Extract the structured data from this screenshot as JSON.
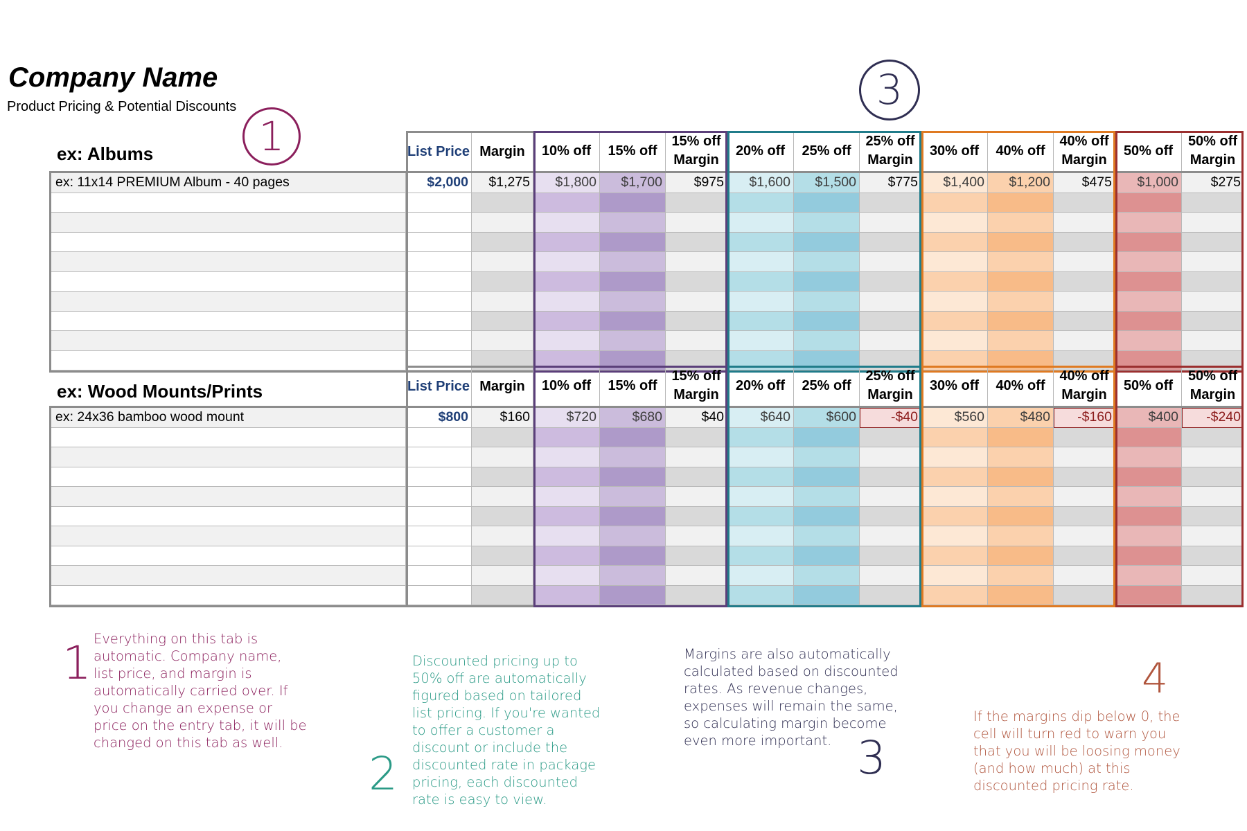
{
  "page": {
    "company_name": "Company Name",
    "subtitle": "Product Pricing & Potential Discounts"
  },
  "callouts": [
    "1",
    "2",
    "3",
    "4"
  ],
  "columns": [
    {
      "key": "list",
      "label": "List Price",
      "color": "#1f3f77"
    },
    {
      "key": "margin",
      "label": "Margin"
    },
    {
      "key": "d10",
      "label": "10% off"
    },
    {
      "key": "d15",
      "label": "15% off"
    },
    {
      "key": "m15",
      "label": "15% off Margin"
    },
    {
      "key": "d20",
      "label": "20% off"
    },
    {
      "key": "d25",
      "label": "25% off"
    },
    {
      "key": "m25",
      "label": "25% off Margin"
    },
    {
      "key": "d30",
      "label": "30% off"
    },
    {
      "key": "d40",
      "label": "40% off"
    },
    {
      "key": "m40",
      "label": "40% off Margin"
    },
    {
      "key": "d50",
      "label": "50% off"
    },
    {
      "key": "m50",
      "label": "50% off Margin"
    }
  ],
  "sections": [
    {
      "title": "ex: Albums",
      "example": {
        "name": "ex: 11x14 PREMIUM Album - 40 pages",
        "values": [
          "$2,000",
          "$1,275",
          "$1,800",
          "$1,700",
          "$975",
          "$1,600",
          "$1,500",
          "$775",
          "$1,400",
          "$1,200",
          "$475",
          "$1,000",
          "$275"
        ]
      }
    },
    {
      "title": "ex: Wood Mounts/Prints",
      "example": {
        "name": "ex: 24x36 bamboo wood mount",
        "values": [
          "$800",
          "$160",
          "$720",
          "$680",
          "$40",
          "$640",
          "$600",
          "-$40",
          "$560",
          "$480",
          "-$160",
          "$400",
          "-$240"
        ]
      }
    }
  ],
  "colors": {
    "purple": "#5b3f7a",
    "teal": "#207c8a",
    "orange": "#df7a22",
    "red": "#9b2f2f",
    "negative_text": "#8b1a1a",
    "negative_fill": "#f6dcdc",
    "note1": "#8b1f5c",
    "note2": "#2a9a86",
    "note3": "#2f2e52",
    "note4": "#b0553d"
  },
  "notes": [
    {
      "num": "1",
      "lines": [
        "Everything on this tab is",
        "automatic. Company name,",
        "list price, and margin is",
        "automatically carried over. If",
        "you change an expense or",
        "price on the entry tab, it will be",
        "changed on this tab as well."
      ]
    },
    {
      "num": "2",
      "lines": [
        "Discounted pricing up to",
        "50% off are automatically",
        "figured based on tailored",
        "list pricing. If you're wanted",
        "to offer a customer a",
        "discount or include the",
        "discounted rate in package",
        "pricing,  each discounted",
        "rate is easy to view."
      ]
    },
    {
      "num": "3",
      "lines": [
        "Margins are also automatically",
        "calculated based on discounted",
        "rates. As revenue changes,",
        "expenses will remain the same,",
        "so calculating margin become",
        "even more important."
      ]
    },
    {
      "num": "4",
      "lines": [
        "If the margins dip below 0, the",
        "cell will turn red to warn you",
        "that you will be loosing money",
        "(and how much) at this",
        "discounted pricing rate."
      ]
    }
  ]
}
